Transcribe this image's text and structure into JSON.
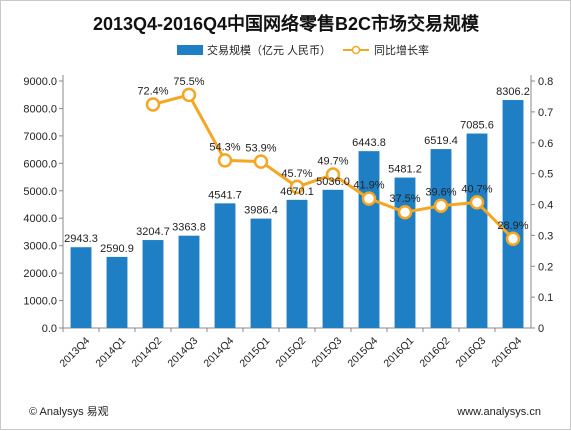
{
  "colors": {
    "bar": "#1f7fc4",
    "line": "#f5a623",
    "axis": "#888888"
  },
  "chart_data": {
    "type": "bar",
    "title": "2013Q4-2016Q4中国网络零售B2C市场交易规模",
    "categories": [
      "2013Q4",
      "2014Q1",
      "2014Q2",
      "2014Q3",
      "2014Q4",
      "2015Q1",
      "2015Q2",
      "2015Q3",
      "2015Q4",
      "2016Q1",
      "2016Q2",
      "2016Q3",
      "2016Q4"
    ],
    "series": [
      {
        "name": "交易规模（亿元 人民币）",
        "type": "bar",
        "axis": "left",
        "values": [
          2943.3,
          2590.9,
          3204.7,
          3363.8,
          4541.7,
          3986.4,
          4670.1,
          5036.0,
          6443.8,
          5481.2,
          6519.4,
          7085.6,
          8306.2
        ],
        "labels": [
          "2943.3",
          "2590.9",
          "3204.7",
          "3363.8",
          "4541.7",
          "3986.4",
          "4670.1",
          "5036.0",
          "6443.8",
          "5481.2",
          "6519.4",
          "7085.6",
          "8306.2"
        ]
      },
      {
        "name": "同比增长率",
        "type": "line",
        "axis": "right",
        "values": [
          null,
          null,
          0.724,
          0.755,
          0.543,
          0.539,
          0.457,
          0.497,
          0.419,
          0.375,
          0.396,
          0.407,
          0.289
        ],
        "labels": [
          "",
          "",
          "72.4%",
          "75.5%",
          "54.3%",
          "53.9%",
          "45.7%",
          "49.7%",
          "41.9%",
          "37.5%",
          "39.6%",
          "40.7%",
          "28.9%"
        ]
      }
    ],
    "ylim": [
      0,
      9000
    ],
    "yticks": [
      "0.0",
      "1000.0",
      "2000.0",
      "3000.0",
      "4000.0",
      "5000.0",
      "6000.0",
      "7000.0",
      "8000.0",
      "9000.0"
    ],
    "y2lim": [
      0,
      0.8
    ],
    "y2ticks": [
      "0",
      "0.1",
      "0.2",
      "0.3",
      "0.4",
      "0.5",
      "0.6",
      "0.7",
      "0.8"
    ],
    "legend": "top-center",
    "grid": false
  },
  "footer": {
    "left": "© Analysys 易观",
    "right": "www.analysys.cn"
  }
}
